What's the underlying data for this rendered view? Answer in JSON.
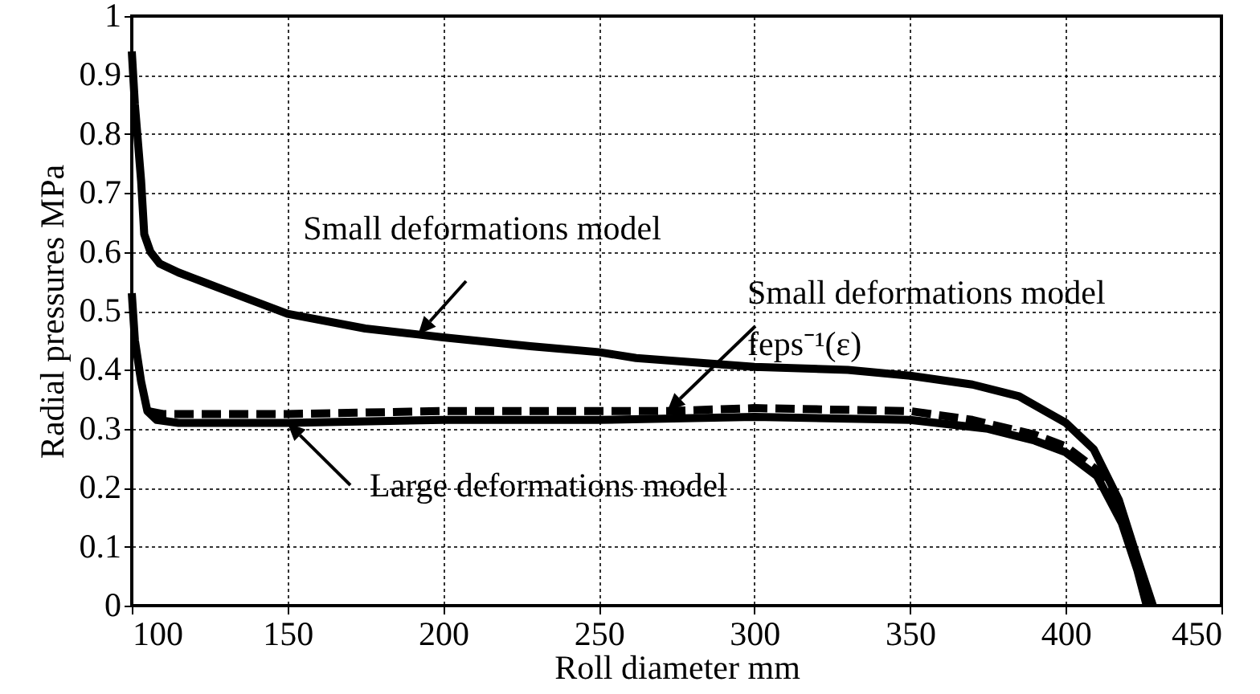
{
  "chart_data": {
    "type": "line",
    "xlabel": "Roll diameter mm",
    "ylabel": "Radial pressures MPa",
    "xlim": [
      100,
      450
    ],
    "xticks": [
      100,
      150,
      200,
      250,
      300,
      350,
      400,
      450
    ],
    "ylim": [
      0,
      1
    ],
    "yticks": [
      {
        "value": 0,
        "label": "0"
      },
      0.1,
      0.2,
      0.3,
      0.4,
      0.5,
      0.6,
      0.7,
      0.8,
      0.9,
      {
        "value": 1,
        "label": "1"
      }
    ],
    "grid": true,
    "marker": "none",
    "series": [
      {
        "name": "Small deformations model",
        "color": "#000000",
        "line_style": "solid",
        "x": [
          100,
          101,
          103,
          104,
          106,
          109,
          115,
          120,
          130,
          150,
          175,
          192,
          200,
          228,
          250,
          262,
          300,
          330,
          350,
          370,
          385,
          400,
          409,
          417,
          423,
          428
        ],
        "values": [
          0.94,
          0.85,
          0.72,
          0.63,
          0.6,
          0.58,
          0.565,
          0.555,
          0.535,
          0.495,
          0.47,
          0.46,
          0.455,
          0.44,
          0.43,
          0.42,
          0.405,
          0.4,
          0.39,
          0.375,
          0.355,
          0.31,
          0.265,
          0.18,
          0.08,
          0
        ]
      },
      {
        "name": "Small deformations model feps⁻¹(ε)",
        "color": "#000000",
        "line_style": "dashed",
        "x": [
          105,
          110,
          150,
          200,
          250,
          272,
          300,
          350,
          370,
          390,
          400,
          410,
          418,
          423,
          427
        ],
        "values": [
          0.33,
          0.325,
          0.325,
          0.33,
          0.33,
          0.33,
          0.335,
          0.33,
          0.315,
          0.29,
          0.27,
          0.23,
          0.15,
          0.07,
          0
        ]
      },
      {
        "name": "Large deformations model",
        "color": "#000000",
        "line_style": "solid",
        "x": [
          100,
          101,
          103,
          105,
          108,
          115,
          150,
          200,
          250,
          300,
          350,
          375,
          390,
          400,
          410,
          418,
          423,
          426
        ],
        "values": [
          0.53,
          0.45,
          0.38,
          0.33,
          0.315,
          0.31,
          0.31,
          0.315,
          0.315,
          0.32,
          0.315,
          0.3,
          0.28,
          0.26,
          0.22,
          0.14,
          0.06,
          0
        ]
      }
    ]
  }
}
